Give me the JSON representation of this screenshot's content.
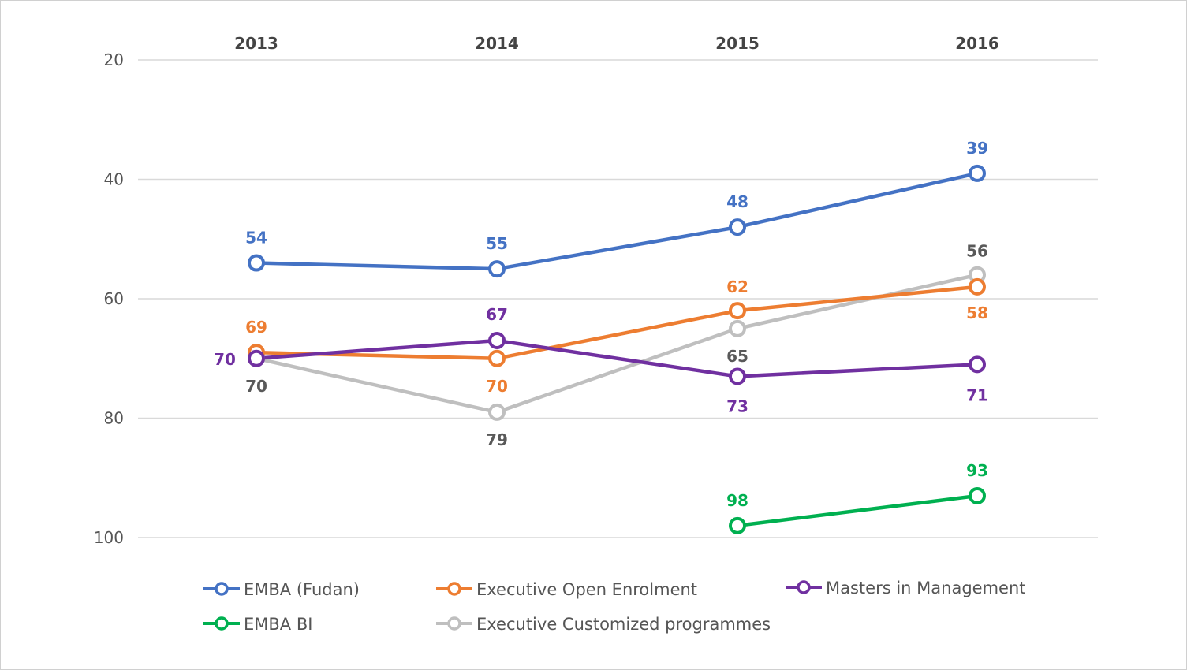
{
  "chart_data": {
    "type": "line",
    "title": "",
    "xlabel": "",
    "ylabel": "",
    "categories": [
      "2013",
      "2014",
      "2015",
      "2016"
    ],
    "y_ticks": [
      "20",
      "40",
      "60",
      "80",
      "100"
    ],
    "ylim": [
      20,
      100
    ],
    "y_inverted": true,
    "x_axis_position": "top",
    "grid": true,
    "legend_position": "bottom",
    "series": [
      {
        "name": "EMBA (Fudan)",
        "color": "#4472c4",
        "values": [
          54,
          55,
          48,
          39
        ]
      },
      {
        "name": "Executive Open Enrolment",
        "color": "#ed7d31",
        "values": [
          69,
          70,
          62,
          58
        ]
      },
      {
        "name": "Masters in Management",
        "color": "#7030a0",
        "values": [
          70,
          67,
          73,
          71
        ]
      },
      {
        "name": "EMBA BI",
        "color": "#00b050",
        "values": [
          null,
          null,
          98,
          93
        ]
      },
      {
        "name": "Executive Customized programmes",
        "color": "#bfbfbf",
        "label_color": "#595959",
        "values": [
          70,
          79,
          65,
          56
        ]
      }
    ]
  }
}
